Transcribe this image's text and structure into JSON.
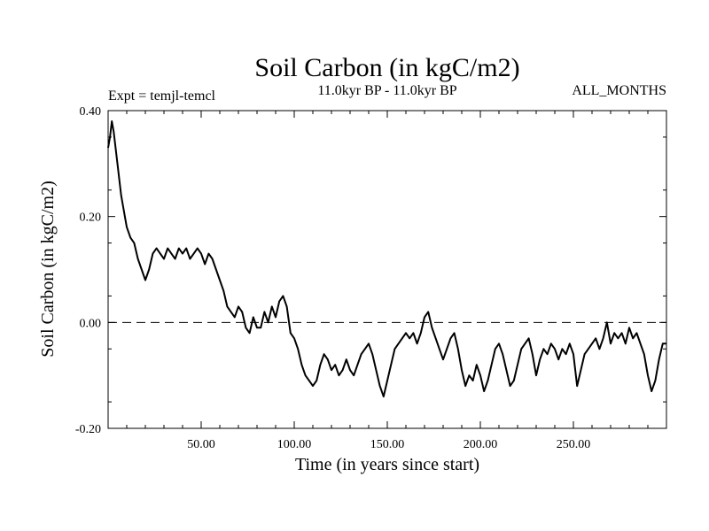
{
  "chart_data": {
    "type": "line",
    "title": "Soil Carbon (in kgC/m2)",
    "subtitle_left": "Expt = temjl-temcl",
    "subtitle_center": "11.0kyr BP - 11.0kyr BP",
    "subtitle_right": "ALL_MONTHS",
    "xlabel": "Time (in years since start)",
    "ylabel": "Soil Carbon (in kgC/m2)",
    "xlim": [
      0,
      300
    ],
    "ylim": [
      -0.2,
      0.4
    ],
    "xticks": [
      50,
      100,
      150,
      200,
      250
    ],
    "xtick_labels": [
      "50.00",
      "100.00",
      "150.00",
      "200.00",
      "250.00"
    ],
    "yticks": [
      -0.2,
      0.0,
      0.2,
      0.4
    ],
    "ytick_labels": [
      "-0.20",
      "0.00",
      "0.20",
      "0.40"
    ],
    "reference_line": {
      "y": 0.0,
      "style": "dashed"
    },
    "series": [
      {
        "name": "Soil Carbon",
        "color": "#000000",
        "x": [
          0,
          1,
          2,
          3,
          4,
          5,
          6,
          7,
          8,
          10,
          12,
          14,
          16,
          18,
          20,
          22,
          24,
          26,
          28,
          30,
          32,
          34,
          36,
          38,
          40,
          42,
          44,
          46,
          48,
          50,
          52,
          54,
          56,
          58,
          60,
          62,
          64,
          66,
          68,
          70,
          72,
          74,
          76,
          78,
          80,
          82,
          84,
          86,
          88,
          90,
          92,
          94,
          96,
          98,
          100,
          102,
          104,
          106,
          108,
          110,
          112,
          114,
          116,
          118,
          120,
          122,
          124,
          126,
          128,
          130,
          132,
          134,
          136,
          138,
          140,
          142,
          144,
          146,
          148,
          150,
          152,
          154,
          156,
          158,
          160,
          162,
          164,
          166,
          168,
          170,
          172,
          174,
          176,
          178,
          180,
          182,
          184,
          186,
          188,
          190,
          192,
          194,
          196,
          198,
          200,
          202,
          204,
          206,
          208,
          210,
          212,
          214,
          216,
          218,
          220,
          222,
          224,
          226,
          228,
          230,
          232,
          234,
          236,
          238,
          240,
          242,
          244,
          246,
          248,
          250,
          252,
          254,
          256,
          258,
          260,
          262,
          264,
          266,
          268,
          270,
          272,
          274,
          276,
          278,
          280,
          282,
          284,
          286,
          288,
          290,
          292,
          294,
          296,
          298,
          300
        ],
        "values": [
          0.33,
          0.35,
          0.38,
          0.36,
          0.33,
          0.3,
          0.27,
          0.24,
          0.22,
          0.18,
          0.16,
          0.15,
          0.12,
          0.1,
          0.08,
          0.1,
          0.13,
          0.14,
          0.13,
          0.12,
          0.14,
          0.13,
          0.12,
          0.14,
          0.13,
          0.14,
          0.12,
          0.13,
          0.14,
          0.13,
          0.11,
          0.13,
          0.12,
          0.1,
          0.08,
          0.06,
          0.03,
          0.02,
          0.01,
          0.03,
          0.02,
          -0.01,
          -0.02,
          0.01,
          -0.01,
          -0.01,
          0.02,
          0.0,
          0.03,
          0.01,
          0.04,
          0.05,
          0.03,
          -0.02,
          -0.03,
          -0.05,
          -0.08,
          -0.1,
          -0.11,
          -0.12,
          -0.11,
          -0.08,
          -0.06,
          -0.07,
          -0.09,
          -0.08,
          -0.1,
          -0.09,
          -0.07,
          -0.09,
          -0.1,
          -0.08,
          -0.06,
          -0.05,
          -0.04,
          -0.06,
          -0.09,
          -0.12,
          -0.14,
          -0.11,
          -0.08,
          -0.05,
          -0.04,
          -0.03,
          -0.02,
          -0.03,
          -0.02,
          -0.04,
          -0.02,
          0.01,
          0.02,
          -0.01,
          -0.03,
          -0.05,
          -0.07,
          -0.05,
          -0.03,
          -0.02,
          -0.05,
          -0.09,
          -0.12,
          -0.1,
          -0.11,
          -0.08,
          -0.1,
          -0.13,
          -0.11,
          -0.08,
          -0.05,
          -0.04,
          -0.06,
          -0.09,
          -0.12,
          -0.11,
          -0.08,
          -0.05,
          -0.04,
          -0.03,
          -0.06,
          -0.1,
          -0.07,
          -0.05,
          -0.06,
          -0.04,
          -0.05,
          -0.07,
          -0.05,
          -0.06,
          -0.04,
          -0.06,
          -0.12,
          -0.09,
          -0.06,
          -0.05,
          -0.04,
          -0.03,
          -0.05,
          -0.03,
          0.0,
          -0.04,
          -0.02,
          -0.03,
          -0.02,
          -0.04,
          -0.01,
          -0.03,
          -0.02,
          -0.04,
          -0.06,
          -0.1,
          -0.13,
          -0.11,
          -0.07,
          -0.04,
          -0.04
        ]
      }
    ]
  }
}
